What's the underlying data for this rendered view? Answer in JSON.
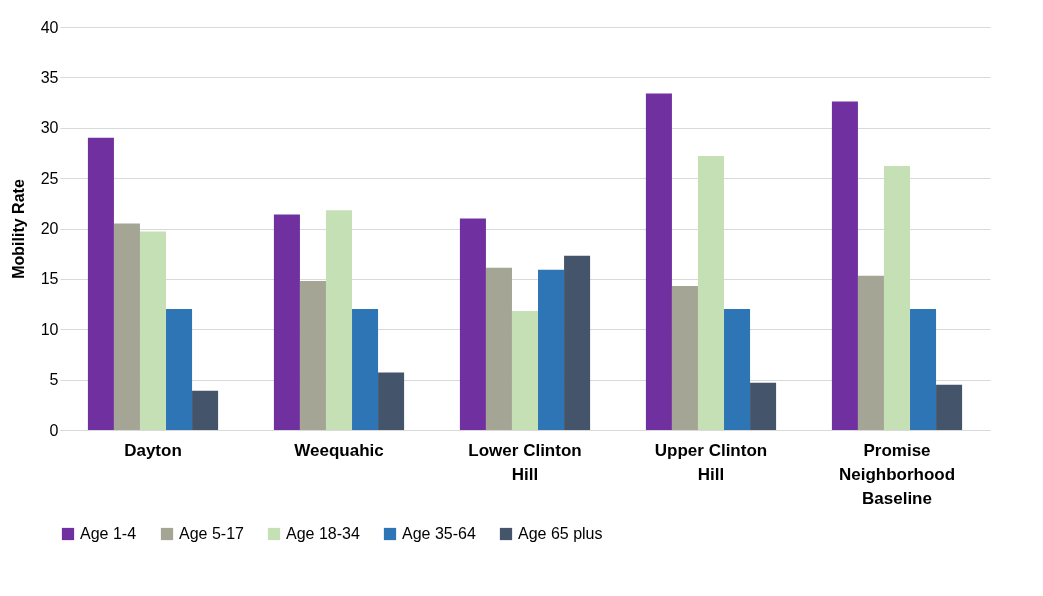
{
  "chart_data": {
    "type": "bar",
    "ylabel": "Mobility Rate",
    "categories": [
      "Dayton",
      "Weequahic",
      "Lower Clinton Hill",
      "Upper Clinton Hill",
      "Promise Neighborhood Baseline"
    ],
    "series": [
      {
        "name": "Age 1-4",
        "color": "#7030a0",
        "values": [
          29.0,
          21.4,
          21.0,
          33.4,
          32.6
        ]
      },
      {
        "name": "Age 5-17",
        "color": "#a5a596",
        "values": [
          20.5,
          14.8,
          16.1,
          14.3,
          15.3
        ]
      },
      {
        "name": "Age 18-34",
        "color": "#c5e0b4",
        "values": [
          19.7,
          21.8,
          11.8,
          27.2,
          26.2
        ]
      },
      {
        "name": "Age 35-64",
        "color": "#2e75b6",
        "values": [
          12.0,
          12.0,
          15.9,
          12.0,
          12.0
        ]
      },
      {
        "name": "Age 65 plus",
        "color": "#44546a",
        "values": [
          3.9,
          5.7,
          17.3,
          4.7,
          4.5
        ]
      }
    ],
    "ylim": [
      0,
      40
    ],
    "yticks": [
      0,
      5,
      10,
      15,
      20,
      25,
      30,
      35,
      40
    ],
    "grid": "y",
    "legend": "bottom"
  }
}
